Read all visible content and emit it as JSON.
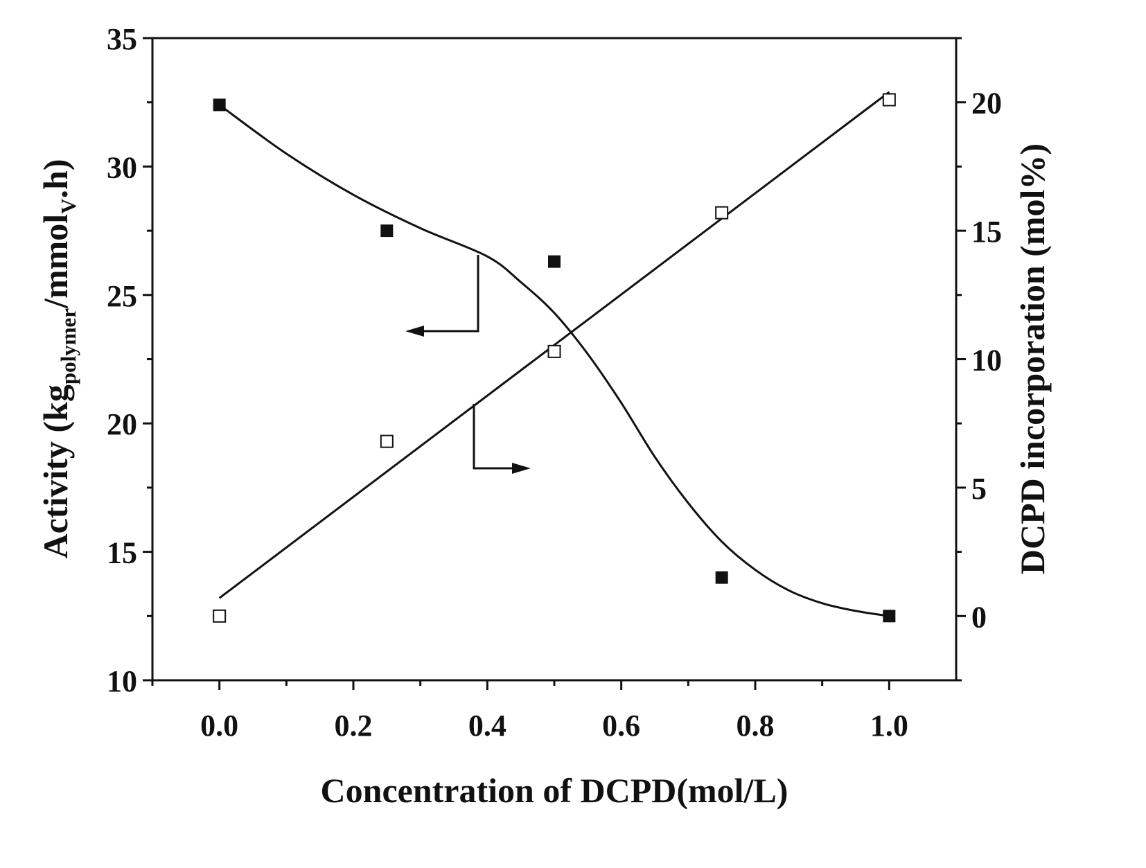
{
  "chart_data": {
    "type": "scatter",
    "xlabel": "Concentration of DCPD(mol/L)",
    "ylabel_left": {
      "main": "Activity (kg",
      "sub1": "polymer",
      "mid": "/mmol",
      "sub2": "V",
      "end": ".h)"
    },
    "ylabel_right": "DCPD incorporation (mol%)",
    "xlim": [
      -0.1,
      1.1
    ],
    "ylim_left": [
      10,
      35
    ],
    "ylim_right": [
      -2.5,
      22.5
    ],
    "x_ticks": [
      "0.0",
      "0.2",
      "0.4",
      "0.6",
      "0.8",
      "1.0"
    ],
    "y_left_ticks": [
      "10",
      "15",
      "20",
      "25",
      "30",
      "35"
    ],
    "y_right_ticks": [
      "0",
      "5",
      "10",
      "15",
      "20"
    ],
    "grid": false,
    "series": [
      {
        "axis": "left",
        "marker": "filled-square",
        "x": [
          0.0,
          0.25,
          0.5,
          0.75,
          1.0
        ],
        "y": [
          32.4,
          27.5,
          26.3,
          14.0,
          12.5
        ],
        "fit": {
          "x": [
            0.0,
            0.1,
            0.2,
            0.3,
            0.4,
            0.45,
            0.5,
            0.55,
            0.6,
            0.65,
            0.7,
            0.75,
            0.8,
            0.85,
            0.9,
            0.95,
            1.0
          ],
          "y": [
            32.4,
            30.5,
            28.9,
            27.6,
            26.5,
            25.5,
            24.3,
            22.7,
            20.8,
            18.7,
            16.9,
            15.4,
            14.3,
            13.5,
            13.0,
            12.7,
            12.5
          ]
        }
      },
      {
        "axis": "right",
        "marker": "open-square",
        "x": [
          0.0,
          0.25,
          0.5,
          0.75,
          1.0
        ],
        "y": [
          0.0,
          6.8,
          10.3,
          15.7,
          20.1
        ],
        "fit": {
          "x": [
            0.0,
            1.0
          ],
          "y": [
            0.7,
            20.4
          ]
        }
      }
    ]
  }
}
